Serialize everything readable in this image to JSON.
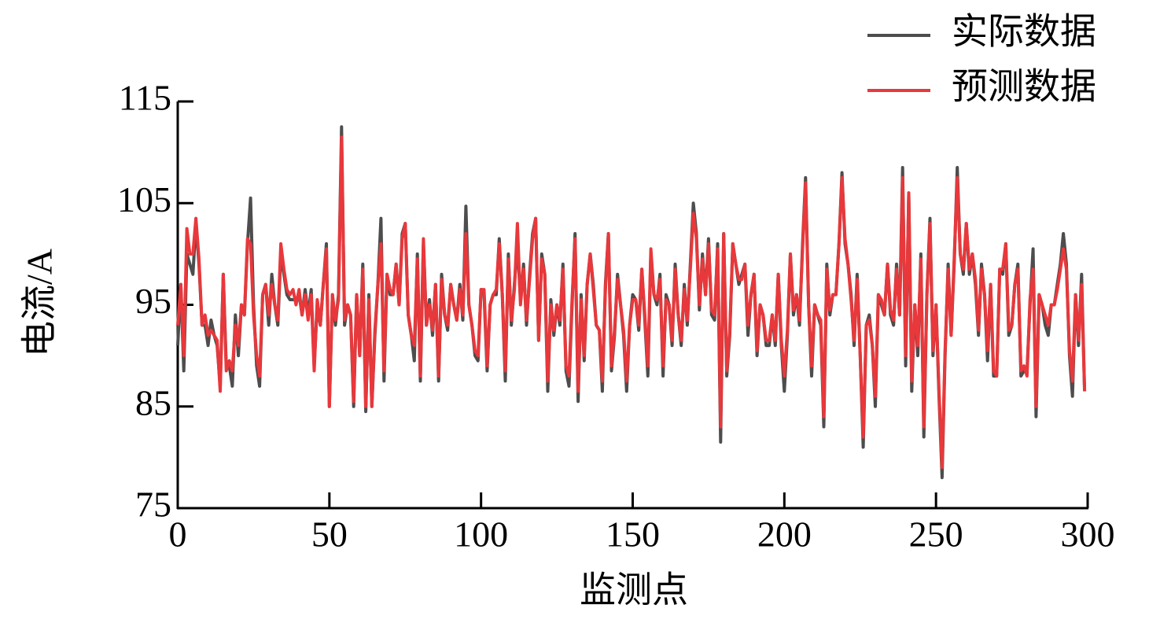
{
  "chart_data": {
    "type": "line",
    "xlabel": "监测点",
    "ylabel": "电流/A",
    "xlim": [
      0,
      300
    ],
    "xticks": [
      0,
      50,
      100,
      150,
      200,
      250,
      300
    ],
    "ylim": [
      75,
      115
    ],
    "yticks": [
      75,
      85,
      95,
      105,
      115
    ],
    "legend": "top-right",
    "x": [
      0,
      1,
      2,
      3,
      4,
      5,
      6,
      7,
      8,
      9,
      10,
      11,
      12,
      13,
      14,
      15,
      16,
      17,
      18,
      19,
      20,
      21,
      22,
      23,
      24,
      25,
      26,
      27,
      28,
      29,
      30,
      31,
      32,
      33,
      34,
      35,
      36,
      37,
      38,
      39,
      40,
      41,
      42,
      43,
      44,
      45,
      46,
      47,
      48,
      49,
      50,
      51,
      52,
      53,
      54,
      55,
      56,
      57,
      58,
      59,
      60,
      61,
      62,
      63,
      64,
      65,
      66,
      67,
      68,
      69,
      70,
      71,
      72,
      73,
      74,
      75,
      76,
      77,
      78,
      79,
      80,
      81,
      82,
      83,
      84,
      85,
      86,
      87,
      88,
      89,
      90,
      91,
      92,
      93,
      94,
      95,
      96,
      97,
      98,
      99,
      100,
      101,
      102,
      103,
      104,
      105,
      106,
      107,
      108,
      109,
      110,
      111,
      112,
      113,
      114,
      115,
      116,
      117,
      118,
      119,
      120,
      121,
      122,
      123,
      124,
      125,
      126,
      127,
      128,
      129,
      130,
      131,
      132,
      133,
      134,
      135,
      136,
      137,
      138,
      139,
      140,
      141,
      142,
      143,
      144,
      145,
      146,
      147,
      148,
      149,
      150,
      151,
      152,
      153,
      154,
      155,
      156,
      157,
      158,
      159,
      160,
      161,
      162,
      163,
      164,
      165,
      166,
      167,
      168,
      169,
      170,
      171,
      172,
      173,
      174,
      175,
      176,
      177,
      178,
      179,
      180,
      181,
      182,
      183,
      184,
      185,
      186,
      187,
      188,
      189,
      190,
      191,
      192,
      193,
      194,
      195,
      196,
      197,
      198,
      199,
      200,
      201,
      202,
      203,
      204,
      205,
      206,
      207,
      208,
      209,
      210,
      211,
      212,
      213,
      214,
      215,
      216,
      217,
      218,
      219,
      220,
      221,
      222,
      223,
      224,
      225,
      226,
      227,
      228,
      229,
      230,
      231,
      232,
      233,
      234,
      235,
      236,
      237,
      238,
      239,
      240,
      241,
      242,
      243,
      244,
      245,
      246,
      247,
      248,
      249,
      250,
      251,
      252,
      253,
      254,
      255,
      256,
      257,
      258,
      259,
      260,
      261,
      262,
      263,
      264,
      265,
      266,
      267,
      268,
      269,
      270,
      271,
      272,
      273,
      274,
      275,
      276,
      277,
      278,
      279,
      280,
      281,
      282,
      283,
      284,
      285,
      286,
      287,
      288,
      289,
      290,
      291,
      292,
      293,
      294,
      295,
      296,
      297,
      298,
      299
    ],
    "series": [
      {
        "name": "实际数据",
        "color": "#4d4d4d",
        "values": [
          91,
          97,
          88.5,
          100,
          99,
          98,
          103,
          99,
          93,
          93,
          91,
          93.5,
          92,
          91,
          87,
          98,
          89,
          89,
          87,
          94,
          90,
          95,
          94,
          101,
          105.5,
          95,
          89,
          87,
          96,
          97,
          93,
          98,
          95,
          93,
          100,
          98,
          96,
          95.5,
          95.5,
          95.5,
          96,
          94,
          96.5,
          94,
          96.5,
          89,
          95,
          93,
          97,
          101,
          85,
          96,
          93,
          96,
          112.5,
          93,
          95,
          94,
          85,
          96,
          90,
          99,
          84.5,
          96,
          85,
          92,
          97,
          103.5,
          87.5,
          98,
          96,
          96,
          99,
          95,
          102,
          103,
          94,
          92,
          89.5,
          100,
          87.5,
          101,
          93,
          95.5,
          92,
          97,
          87.5,
          98,
          94,
          92.5,
          97,
          95,
          93.5,
          97,
          93.5,
          104.7,
          95,
          93,
          90,
          89.5,
          96.5,
          96,
          88.5,
          95,
          96,
          96,
          101.5,
          96,
          87.5,
          100,
          93,
          97,
          101,
          95.5,
          99,
          93,
          98,
          102,
          103.5,
          91.5,
          100,
          98,
          86.5,
          95.5,
          92,
          95,
          93,
          99,
          88.5,
          87,
          95,
          102,
          85.5,
          96,
          89.5,
          97,
          100,
          97,
          93,
          92.5,
          86.5,
          97,
          102,
          88.5,
          92,
          98,
          95,
          92,
          86.5,
          93,
          96,
          95.5,
          92.5,
          98.5,
          93.5,
          88,
          100,
          96,
          95,
          98,
          88,
          96,
          95,
          91,
          99,
          94,
          91,
          97,
          93,
          99,
          105,
          102,
          94.5,
          100,
          96,
          101.5,
          94,
          93.5,
          101,
          81.5,
          102,
          88,
          92,
          101,
          99,
          97,
          98,
          99,
          92,
          96,
          98,
          90,
          95,
          94,
          91,
          91,
          94,
          91,
          98,
          91,
          86.5,
          92,
          100,
          94,
          96,
          93,
          101,
          107.5,
          95,
          88,
          95,
          94,
          93,
          83,
          99,
          94,
          96,
          96,
          101,
          108,
          101,
          99,
          96,
          91,
          98,
          90,
          81,
          93,
          94,
          91,
          85,
          96,
          95,
          94,
          99,
          94,
          93,
          99,
          94,
          108.5,
          89,
          106,
          86.5,
          95,
          90,
          100,
          82,
          96,
          103.5,
          90,
          95,
          86,
          78,
          90,
          99,
          92,
          99,
          108.5,
          100,
          98,
          103,
          98,
          100,
          97,
          92,
          99,
          96,
          89.5,
          97,
          88,
          88,
          98.5,
          98,
          101,
          92,
          93,
          97,
          99,
          88,
          88.5,
          88.5,
          95,
          100.5,
          84,
          96,
          95,
          93,
          92,
          95,
          95,
          97,
          99,
          102,
          99,
          90,
          86,
          96,
          91,
          98,
          86.5
        ]
      },
      {
        "name": "预测数据",
        "color": "#e8383b",
        "values": [
          93,
          97,
          90,
          102.5,
          100,
          100,
          103.5,
          99.5,
          93,
          94,
          92,
          92.5,
          92,
          91.5,
          86.5,
          98,
          88.5,
          89.5,
          88.5,
          93,
          91,
          95,
          94,
          101.5,
          101,
          94,
          90,
          88,
          96,
          97,
          94,
          97,
          95,
          93.5,
          101,
          98.5,
          96.5,
          96,
          96.5,
          95,
          96.5,
          94,
          96,
          93.5,
          96,
          88.5,
          95.5,
          93,
          97,
          100.5,
          85,
          96,
          93.5,
          95.5,
          111.5,
          93.5,
          95,
          94,
          85.5,
          96,
          90,
          98.5,
          85,
          95.5,
          85,
          92.5,
          97,
          101,
          88.5,
          98,
          96.5,
          96,
          99,
          95,
          101.5,
          103,
          94,
          92,
          91,
          99.5,
          88,
          101.5,
          93,
          95,
          92.5,
          97,
          88,
          97.5,
          94,
          93,
          97,
          95,
          93.5,
          96.5,
          94,
          102,
          95,
          93,
          90.5,
          90,
          96.5,
          96.5,
          89,
          95,
          96,
          96.5,
          101,
          96,
          88.5,
          99.5,
          93.5,
          96.5,
          103,
          95,
          98.5,
          93.5,
          97.5,
          101.5,
          103.5,
          91.5,
          99.5,
          98,
          87.5,
          95,
          92.5,
          95,
          93.5,
          98.5,
          89,
          88,
          95.5,
          101.5,
          86.5,
          95.5,
          90,
          97,
          100,
          96.5,
          93,
          92.5,
          87.5,
          96.5,
          102,
          89,
          92.5,
          97.5,
          95,
          92.5,
          87.5,
          93,
          95.5,
          95.5,
          93,
          98.5,
          94,
          89,
          100.5,
          96,
          95.5,
          97.5,
          89,
          95.5,
          95,
          91.5,
          98.5,
          94,
          91.5,
          96.5,
          93.5,
          98.5,
          104,
          101.5,
          95,
          99.5,
          96,
          101,
          94.5,
          94,
          100.5,
          83,
          102,
          88.5,
          92.5,
          101,
          99,
          97.5,
          97.5,
          99,
          93,
          96,
          98,
          90.5,
          95,
          94,
          91.5,
          91.5,
          94,
          91.5,
          98,
          91.5,
          88,
          92.5,
          100,
          94.5,
          96,
          93.5,
          100.5,
          107,
          95,
          89,
          95,
          94,
          93.5,
          84,
          98.5,
          94.5,
          96,
          96,
          101,
          107.5,
          101.5,
          99,
          95.5,
          91.5,
          97.5,
          90,
          82,
          93,
          93.5,
          91,
          86,
          96,
          95.5,
          94,
          99,
          94.5,
          93.5,
          98.5,
          94,
          107.5,
          90,
          106,
          87.5,
          95,
          91,
          99.5,
          83,
          96,
          103,
          90.5,
          95,
          86.5,
          79,
          90.5,
          98.5,
          92,
          99.5,
          107.5,
          100,
          98.5,
          103,
          98.5,
          100,
          97.5,
          92.5,
          98.5,
          96,
          90.5,
          97,
          88.5,
          88,
          98.5,
          98.5,
          101,
          92.5,
          93,
          97,
          98.5,
          88.5,
          89,
          88,
          95.5,
          98.5,
          85,
          96,
          95,
          94,
          93,
          95,
          95,
          96.5,
          98.5,
          100.5,
          98.5,
          90.5,
          87.5,
          96,
          91.5,
          97,
          86.5
        ]
      }
    ]
  }
}
